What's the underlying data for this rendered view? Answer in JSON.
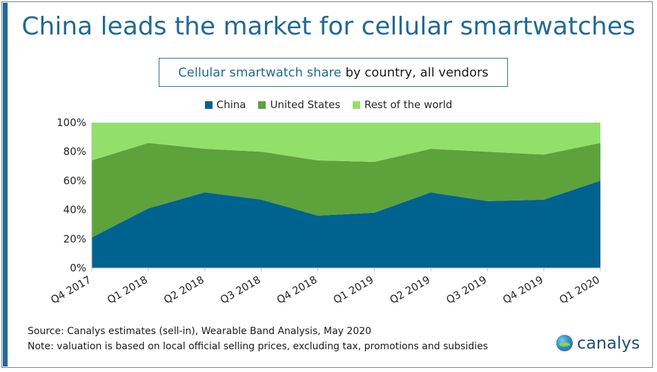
{
  "header": {
    "title": "China leads the market for cellular smartwatches",
    "subtitle_highlight": "Cellular smartwatch share",
    "subtitle_rest": "by country, all vendors"
  },
  "footer": {
    "source": "Source: Canalys estimates (sell-in), Wearable Band Analysis, May 2020",
    "note": "Note: valuation is based on local official selling prices, excluding tax, promotions and subsidies",
    "logo_text": "canalys"
  },
  "colors": {
    "china": "#00628f",
    "us": "#5ea23b",
    "rest": "#92e06a",
    "title": "#1f6a96"
  },
  "chart_data": {
    "type": "area",
    "stacked": true,
    "categories": [
      "Q4 2017",
      "Q1 2018",
      "Q2 2018",
      "Q3 2018",
      "Q4 2018",
      "Q1 2019",
      "Q2 2019",
      "Q3 2019",
      "Q4 2019",
      "Q1 2020"
    ],
    "series": [
      {
        "name": "China",
        "values": [
          21,
          41,
          52,
          47,
          36,
          38,
          52,
          46,
          47,
          60
        ]
      },
      {
        "name": "United States",
        "values": [
          53,
          45,
          30,
          33,
          38,
          35,
          30,
          34,
          31,
          26
        ]
      },
      {
        "name": "Rest of the world",
        "values": [
          26,
          14,
          18,
          20,
          26,
          27,
          18,
          20,
          22,
          14
        ]
      }
    ],
    "ylim": [
      0,
      100
    ],
    "yticks": [
      "0%",
      "20%",
      "40%",
      "60%",
      "80%",
      "100%"
    ],
    "legend_position": "top-center",
    "grid": false
  }
}
